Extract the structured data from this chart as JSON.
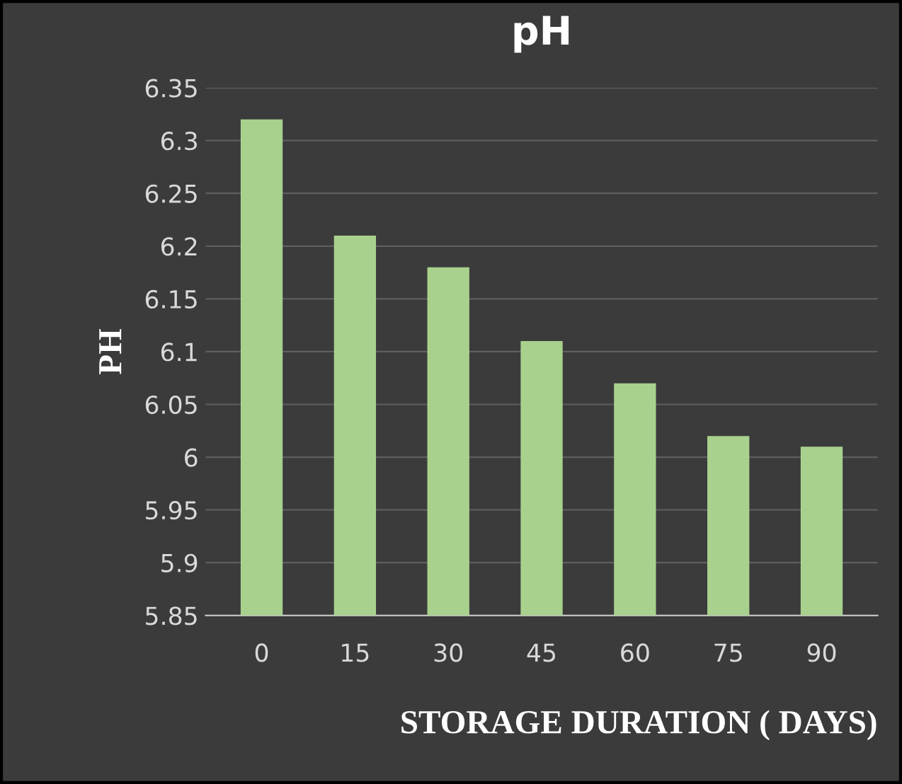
{
  "chart_data": {
    "type": "bar",
    "title": "pH",
    "xlabel": "STORAGE DURATION ( DAYS)",
    "ylabel": "PH",
    "categories": [
      "0",
      "15",
      "30",
      "45",
      "60",
      "75",
      "90"
    ],
    "values": [
      6.32,
      6.21,
      6.18,
      6.11,
      6.07,
      6.02,
      6.01
    ],
    "color": "#a9d18e",
    "ylim": [
      5.85,
      6.35
    ],
    "yticks": [
      {
        "value": 5.85,
        "label": "5.85"
      },
      {
        "value": 5.9,
        "label": "5.9"
      },
      {
        "value": 5.95,
        "label": "5.95"
      },
      {
        "value": 6.0,
        "label": "6"
      },
      {
        "value": 6.05,
        "label": "6.05"
      },
      {
        "value": 6.1,
        "label": "6.1"
      },
      {
        "value": 6.15,
        "label": "6.15"
      },
      {
        "value": 6.2,
        "label": "6.2"
      },
      {
        "value": 6.25,
        "label": "6.25"
      },
      {
        "value": 6.3,
        "label": "6.3"
      },
      {
        "value": 6.35,
        "label": "6.35"
      }
    ],
    "grid": "y"
  }
}
